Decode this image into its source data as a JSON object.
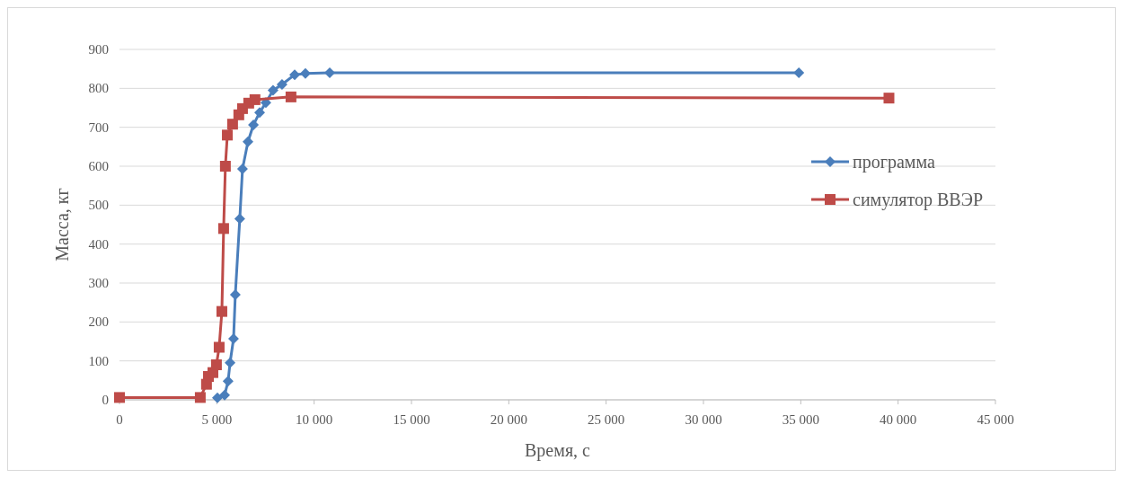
{
  "chart_data": {
    "type": "line",
    "xlabel": "Время, с",
    "ylabel": "Масса, кг",
    "xlim": [
      0,
      45000
    ],
    "xticks": [
      {
        "value": 0,
        "label": "0"
      },
      {
        "value": 5000,
        "label": "5 000"
      },
      {
        "value": 10000,
        "label": "10 000"
      },
      {
        "value": 15000,
        "label": "15 000"
      },
      {
        "value": 20000,
        "label": "20 000"
      },
      {
        "value": 25000,
        "label": "25 000"
      },
      {
        "value": 30000,
        "label": "30 000"
      },
      {
        "value": 35000,
        "label": "35 000"
      },
      {
        "value": 40000,
        "label": "40 000"
      },
      {
        "value": 45000,
        "label": "45 000"
      }
    ],
    "ylim": [
      0,
      900
    ],
    "yticks": [
      0,
      100,
      200,
      300,
      400,
      500,
      600,
      700,
      800,
      900
    ],
    "grid": "y",
    "legend": "right",
    "series": [
      {
        "name": "программа",
        "color": "#4a7ebb",
        "marker": "diamond",
        "x": [
          5030,
          5400,
          5580,
          5680,
          5860,
          5950,
          6180,
          6320,
          6600,
          6880,
          7200,
          7520,
          7890,
          8350,
          9000,
          9550,
          10800,
          34900
        ],
        "values": [
          5,
          12,
          48,
          95,
          157,
          270,
          465,
          593,
          663,
          706,
          738,
          763,
          795,
          810,
          835,
          838,
          840,
          840
        ]
      },
      {
        "name": "симулятор ВВЭР",
        "color": "#be4b48",
        "marker": "square",
        "x": [
          0,
          4150,
          4470,
          4570,
          4800,
          4980,
          5120,
          5260,
          5350,
          5440,
          5540,
          5810,
          6130,
          6320,
          6640,
          6960,
          8810,
          39530
        ],
        "values": [
          6,
          6,
          40,
          60,
          70,
          90,
          135,
          227,
          440,
          600,
          680,
          708,
          732,
          748,
          762,
          771,
          778,
          775
        ]
      }
    ]
  }
}
